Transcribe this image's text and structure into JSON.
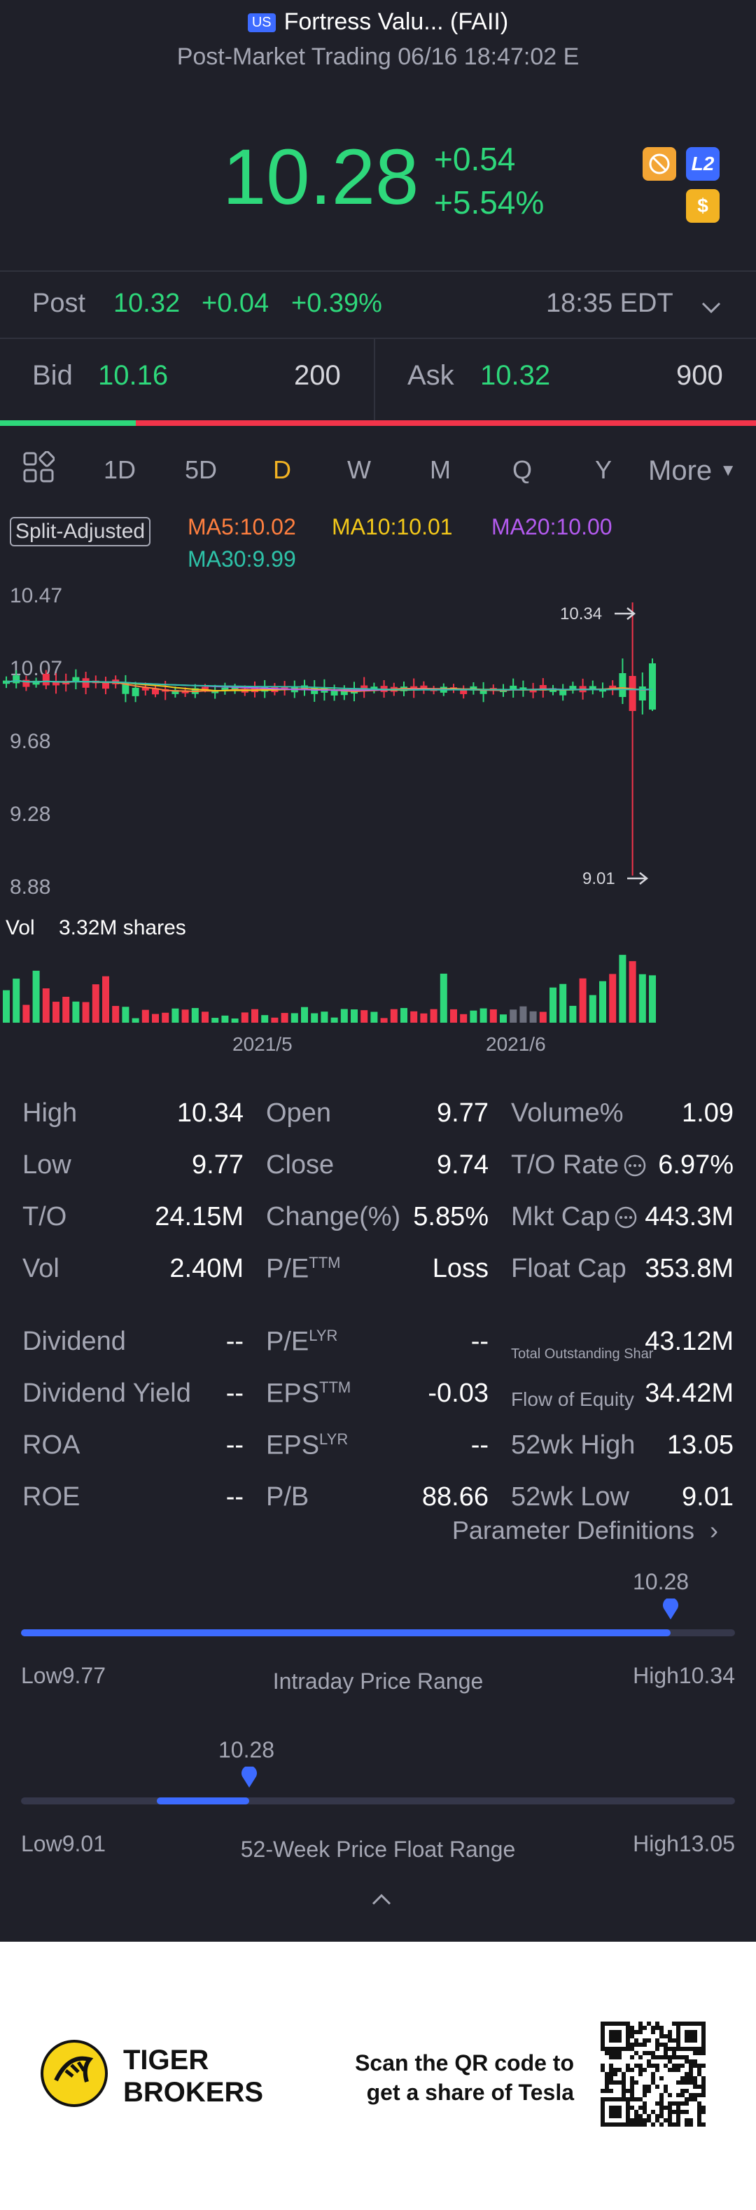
{
  "header": {
    "market_badge": "US",
    "title": "Fortress Valu... (FAII)",
    "subtitle": "Post-Market Trading 06/16 18:47:02 E"
  },
  "quote": {
    "price": "10.28",
    "change": "+0.54",
    "change_pct": "+5.54%",
    "icons": [
      "no-short-icon",
      "level2-icon",
      "dollar-icon"
    ]
  },
  "post": {
    "label": "Post",
    "price": "10.32",
    "change": "+0.04",
    "change_pct": "+0.39%",
    "time": "18:35 EDT"
  },
  "bid": {
    "label": "Bid",
    "price": "10.16",
    "size": "200"
  },
  "ask": {
    "label": "Ask",
    "price": "10.32",
    "size": "900"
  },
  "bid_ask_ratio": 0.18,
  "tabs": [
    "1D",
    "5D",
    "D",
    "W",
    "M",
    "Q",
    "Y",
    "More"
  ],
  "active_tab": "D",
  "legend": {
    "split": "Split-Adjusted",
    "ma5": "MA5:10.02",
    "ma10": "MA10:10.01",
    "ma20": "MA20:10.00",
    "ma30": "MA30:9.99"
  },
  "chart_data": {
    "type": "candlestick",
    "y_ticks": [
      "10.47",
      "10.07",
      "9.68",
      "9.28",
      "8.88"
    ],
    "ylim": [
      8.88,
      10.47
    ],
    "high_marker": "10.34",
    "low_marker": "9.01",
    "volume_label": "Vol",
    "volume_value": "3.32M shares",
    "x_ticks": [
      "2021/5",
      "2021/6"
    ],
    "colors": {
      "up": "#2ed87b",
      "down": "#f2344a"
    }
  },
  "stats": {
    "col1": [
      {
        "label": "High",
        "value": "10.34"
      },
      {
        "label": "Low",
        "value": "9.77"
      },
      {
        "label": "T/O",
        "value": "24.15M"
      },
      {
        "label": "Vol",
        "value": "2.40M"
      },
      {
        "label": "Dividend",
        "value": "--"
      },
      {
        "label": "Dividend Yield",
        "value": "--"
      },
      {
        "label": "ROA",
        "value": "--"
      },
      {
        "label": "ROE",
        "value": "--"
      }
    ],
    "col2": [
      {
        "label": "Open",
        "value": "9.77"
      },
      {
        "label": "Close",
        "value": "9.74"
      },
      {
        "label": "Change(%)",
        "value": "5.85%"
      },
      {
        "label": "P/E",
        "sup": "TTM",
        "value": "Loss"
      },
      {
        "label": "P/E",
        "sup": "LYR",
        "value": "--"
      },
      {
        "label": "EPS",
        "sup": "TTM",
        "value": "-0.03"
      },
      {
        "label": "EPS",
        "sup": "LYR",
        "value": "--"
      },
      {
        "label": "P/B",
        "value": "88.66"
      }
    ],
    "col3": [
      {
        "label": "Volume%",
        "value": "1.09"
      },
      {
        "label": "T/O Rate",
        "value": "6.97%"
      },
      {
        "label": "Mkt Cap",
        "value": "443.3M"
      },
      {
        "label": "Float Cap",
        "value": "353.8M"
      },
      {
        "label": "Total Outstanding Shar",
        "value": "43.12M"
      },
      {
        "label": "Flow of Equity",
        "value": "34.42M"
      },
      {
        "label": "52wk High",
        "value": "13.05"
      },
      {
        "label": "52wk Low",
        "value": "9.01"
      }
    ]
  },
  "param_def": "Parameter Definitions",
  "intraday": {
    "current": "10.28",
    "low": "Low9.77",
    "high": "High10.34",
    "title": "Intraday Price Range",
    "fill_fraction": 0.91
  },
  "week52": {
    "current": "10.28",
    "low": "Low9.01",
    "high": "High13.05",
    "title": "52-Week Price Float Range",
    "fill_start": 0.19,
    "fill_fraction": 0.32
  },
  "footer": {
    "brand_line1": "TIGER",
    "brand_line2": "BROKERS",
    "scan_line1": "Scan the QR code to",
    "scan_line2": "get a share of Tesla"
  }
}
